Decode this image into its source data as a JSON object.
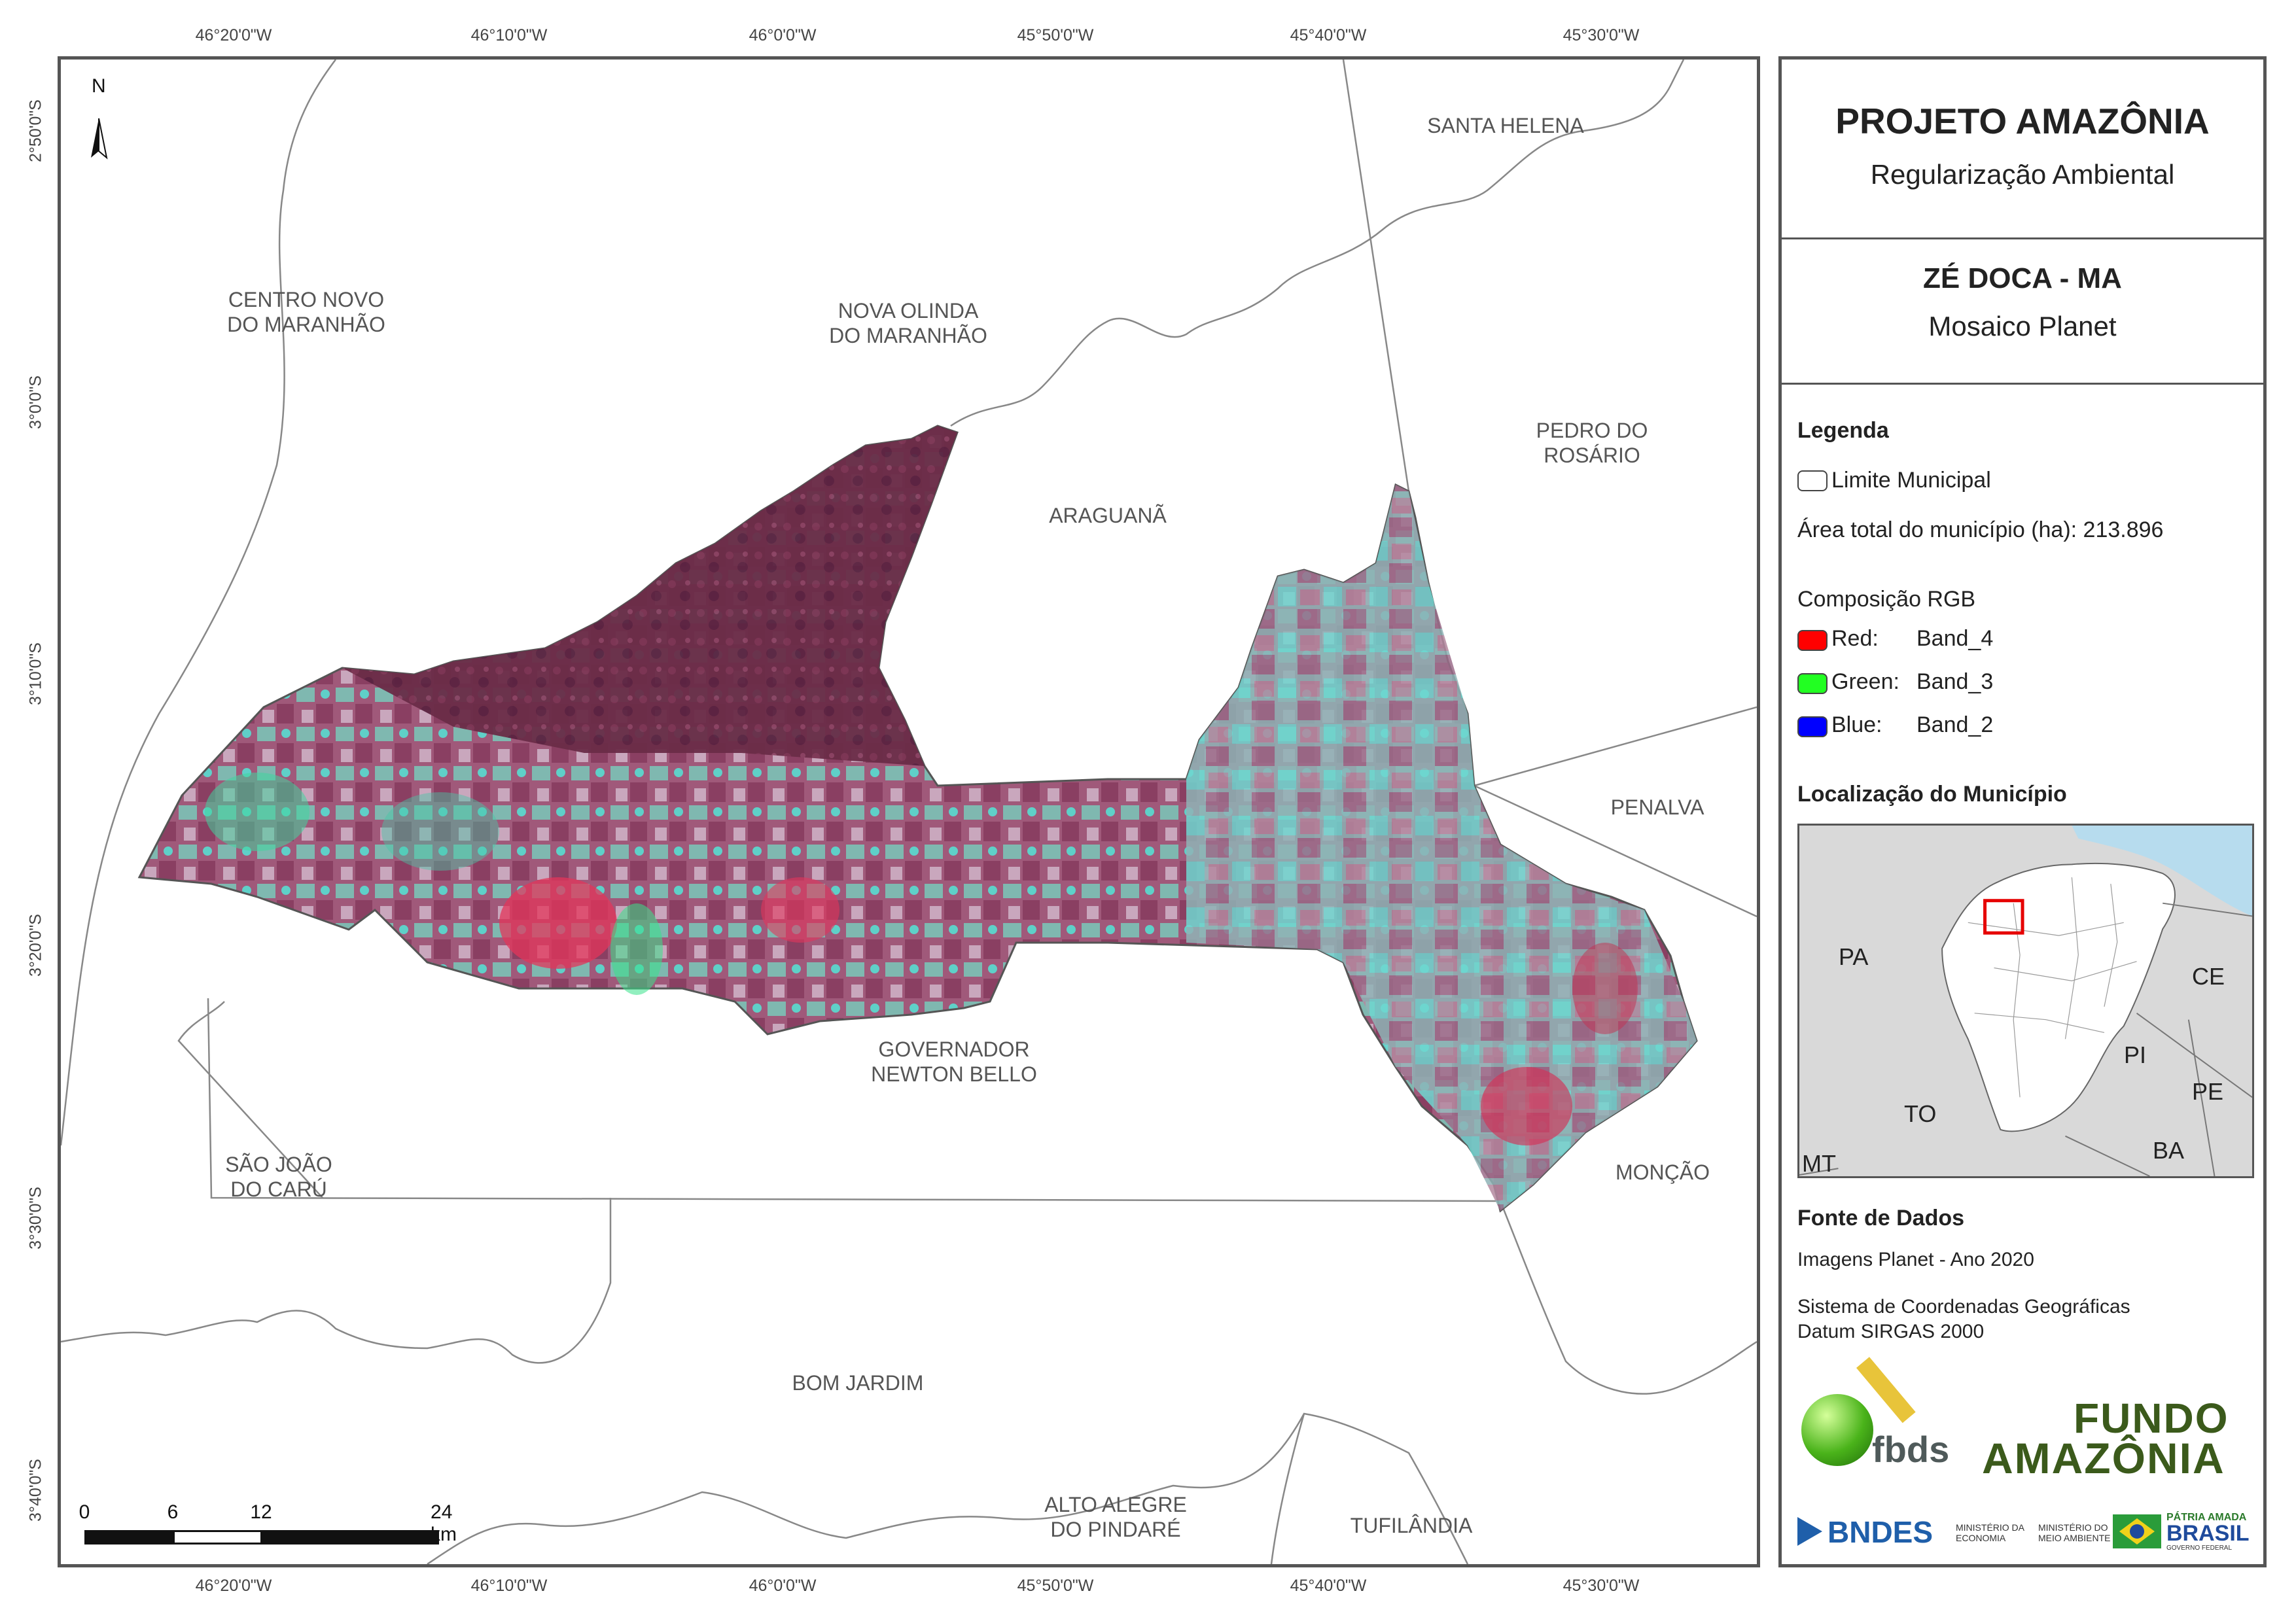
{
  "graticule": {
    "top": [
      "46°20'0\"W",
      "46°10'0\"W",
      "46°0'0\"W",
      "45°50'0\"W",
      "45°40'0\"W",
      "45°30'0\"W"
    ],
    "bottom": [
      "46°20'0\"W",
      "46°10'0\"W",
      "46°0'0\"W",
      "45°50'0\"W",
      "45°40'0\"W",
      "45°30'0\"W"
    ],
    "left": [
      "2°50'0\"S",
      "3°0'0\"S",
      "3°10'0\"S",
      "3°20'0\"S",
      "3°30'0\"S",
      "3°40'0\"S"
    ]
  },
  "north_arrow": "N",
  "municipalities": {
    "santa_helena": "SANTA HELENA",
    "centro_novo": "CENTRO NOVO\nDO MARANHÃO",
    "nova_olinda": "NOVA OLINDA\nDO MARANHÃO",
    "pedro_rosario": "PEDRO DO\nROSÁRIO",
    "araguana": "ARAGUANÃ",
    "penalva": "PENALVA",
    "governador": "GOVERNADOR\nNEWTON BELLO",
    "sao_joao": "SÃO JOÃO\nDO CARÚ",
    "moncao": "MONÇÃO",
    "bom_jardim": "BOM JARDIM",
    "alto_alegre": "ALTO ALEGRE\nDO PINDARÉ",
    "tufilandia": "TUFILÂNDIA"
  },
  "scalebar": {
    "labels": [
      "0",
      "6",
      "12",
      "24 km"
    ]
  },
  "panel": {
    "title": "PROJETO AMAZÔNIA",
    "subtitle": "Regularização Ambiental",
    "municipality": "ZÉ DOCA - MA",
    "mosaic": "Mosaico Planet",
    "legend_title": "Legenda",
    "limit_label": "Limite Municipal",
    "area_label": "Área total do município (ha): 213.896",
    "rgb_title": "Composição RGB",
    "bands": [
      {
        "label": "Red:",
        "band": "Band_4",
        "color": "#ff0000"
      },
      {
        "label": "Green:",
        "band": "Band_3",
        "color": "#22ff22"
      },
      {
        "label": "Blue:",
        "band": "Band_2",
        "color": "#0000ff"
      }
    ],
    "location_title": "Localização do Município",
    "inset_labels": {
      "pa": "PA",
      "ce": "CE",
      "pi": "PI",
      "pe": "PE",
      "to": "TO",
      "ba": "BA",
      "mt": "MT"
    },
    "source_title": "Fonte de Dados",
    "source_1": "Imagens Planet - Ano 2020",
    "source_2": "Sistema de Coordenadas Geográficas",
    "source_3": "Datum SIRGAS 2000",
    "logos": {
      "fbds": "fbds",
      "fundo_1": "FUNDO",
      "fundo_2": "AMAZÔNIA",
      "bndes": "BNDES",
      "min_eco_1": "MINISTÉRIO DA",
      "min_eco_2": "ECONOMIA",
      "min_meio_1": "MINISTÉRIO DO",
      "min_meio_2": "MEIO AMBIENTE",
      "patria_1": "PÁTRIA AMADA",
      "patria_2": "BRASIL",
      "patria_3": "GOVERNO FEDERAL"
    }
  }
}
